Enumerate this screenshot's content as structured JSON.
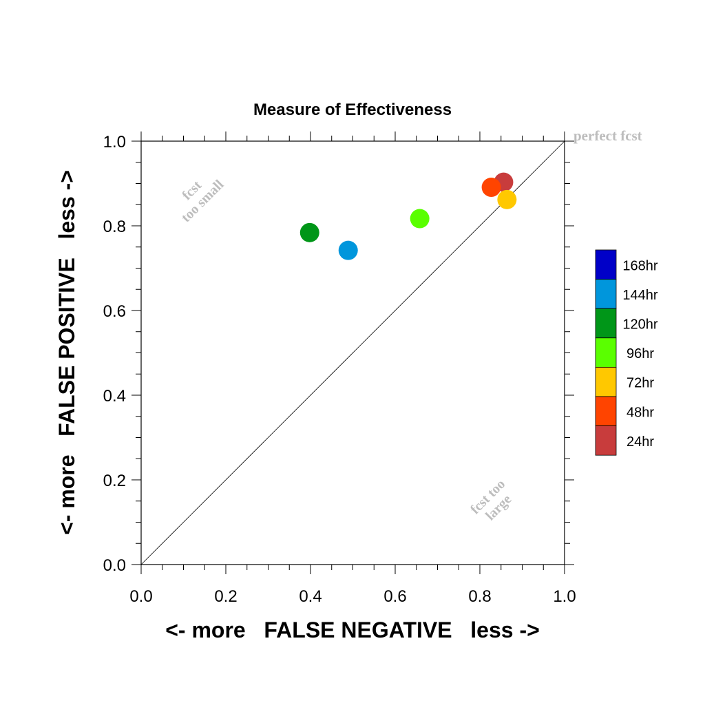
{
  "chart_data": {
    "type": "scatter",
    "title": "Measure of Effectiveness",
    "xlabel": "<- more   FALSE NEGATIVE   less ->",
    "ylabel": "<- more   FALSE POSITIVE   less ->",
    "xlim": [
      0.0,
      1.0
    ],
    "ylim": [
      0.0,
      1.0
    ],
    "x_ticks": [
      "0.0",
      "0.2",
      "0.4",
      "0.6",
      "0.8",
      "1.0"
    ],
    "y_ticks": [
      "0.0",
      "0.2",
      "0.4",
      "0.6",
      "0.8",
      "1.0"
    ],
    "grid": false,
    "reference_line": {
      "from": [
        0,
        0
      ],
      "to": [
        1,
        1
      ]
    },
    "annotations": {
      "perfect": "perfect fcst",
      "small_1": "fcst",
      "small_2": "too small",
      "large_1": "fcst too",
      "large_2": "large"
    },
    "legend": {
      "placement": "right",
      "entries": [
        {
          "label": "168hr",
          "color": "#0000c8"
        },
        {
          "label": "144hr",
          "color": "#0096dc"
        },
        {
          "label": "120hr",
          "color": "#009618"
        },
        {
          "label": "96hr",
          "color": "#5aff00"
        },
        {
          "label": "72hr",
          "color": "#ffc800"
        },
        {
          "label": "48hr",
          "color": "#ff4400"
        },
        {
          "label": "24hr",
          "color": "#c83c3c"
        }
      ]
    },
    "points": [
      {
        "series": "24hr",
        "x": 0.856,
        "y": 0.903,
        "color": "#c83c3c"
      },
      {
        "series": "48hr",
        "x": 0.827,
        "y": 0.891,
        "color": "#ff4400"
      },
      {
        "series": "72hr",
        "x": 0.864,
        "y": 0.862,
        "color": "#ffc800"
      },
      {
        "series": "96hr",
        "x": 0.658,
        "y": 0.817,
        "color": "#5aff00"
      },
      {
        "series": "120hr",
        "x": 0.398,
        "y": 0.784,
        "color": "#009618"
      },
      {
        "series": "144hr",
        "x": 0.489,
        "y": 0.742,
        "color": "#0096dc"
      }
    ]
  }
}
